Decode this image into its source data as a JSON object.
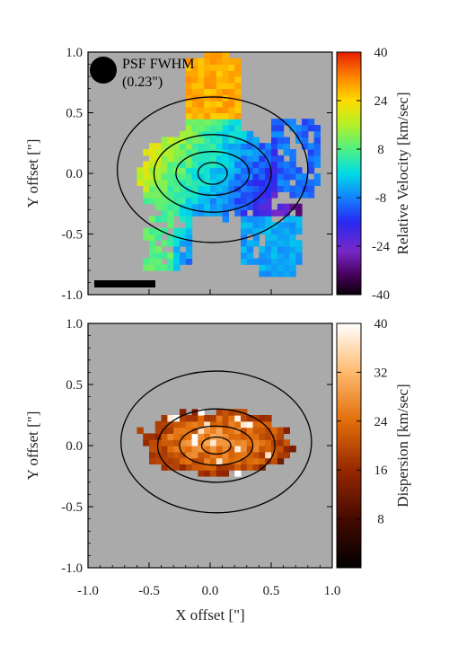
{
  "chart_data": [
    {
      "type": "heatmap",
      "panel": "velocity",
      "xlim": [
        -1.0,
        1.0
      ],
      "ylim": [
        -1.0,
        1.0
      ],
      "x_ticks": [
        "-1.0",
        "-0.5",
        "0.0",
        "0.5",
        "1.0"
      ],
      "y_ticks": [
        "1.0",
        "0.5",
        "0.0",
        "-0.5",
        "-1.0"
      ],
      "ylabel": "Y offset [\"]",
      "xlabel": "",
      "colorbar_label": "Relative Velocity [km/sec]",
      "colorbar_range": [
        -40,
        40
      ],
      "colorbar_ticks": [
        "40",
        "24",
        "8",
        "-8",
        "-24",
        "-40"
      ],
      "psf_label": "PSF FWHM",
      "psf_value": "(0.23\")",
      "psf_fwhm_arcsec": 0.23,
      "scale_bar": true,
      "contour_ellipses": [
        {
          "cx": 0.02,
          "cy": 0.0,
          "rx": 0.12,
          "ry": 0.09
        },
        {
          "cx": 0.02,
          "cy": 0.0,
          "rx": 0.3,
          "ry": 0.18
        },
        {
          "cx": 0.02,
          "cy": 0.0,
          "rx": 0.48,
          "ry": 0.32
        },
        {
          "cx": 0.02,
          "cy": 0.03,
          "rx": 0.78,
          "ry": 0.6
        }
      ]
    },
    {
      "type": "heatmap",
      "panel": "dispersion",
      "xlim": [
        -1.0,
        1.0
      ],
      "ylim": [
        -1.0,
        1.0
      ],
      "x_ticks": [
        "-1.0",
        "-0.5",
        "0.0",
        "0.5",
        "1.0"
      ],
      "y_ticks": [
        "1.0",
        "0.5",
        "0.0",
        "-0.5",
        "-1.0"
      ],
      "ylabel": "Y offset [\"]",
      "xlabel": "X offset [\"]",
      "colorbar_label": "Dispersion [km/sec]",
      "colorbar_range": [
        0,
        40
      ],
      "colorbar_ticks": [
        "40",
        "32",
        "24",
        "16",
        "8"
      ],
      "contour_ellipses": [
        {
          "cx": 0.05,
          "cy": 0.0,
          "rx": 0.12,
          "ry": 0.07
        },
        {
          "cx": 0.05,
          "cy": 0.0,
          "rx": 0.3,
          "ry": 0.16
        },
        {
          "cx": 0.05,
          "cy": 0.0,
          "rx": 0.48,
          "ry": 0.3
        },
        {
          "cx": 0.05,
          "cy": 0.03,
          "rx": 0.78,
          "ry": 0.58
        }
      ]
    }
  ]
}
